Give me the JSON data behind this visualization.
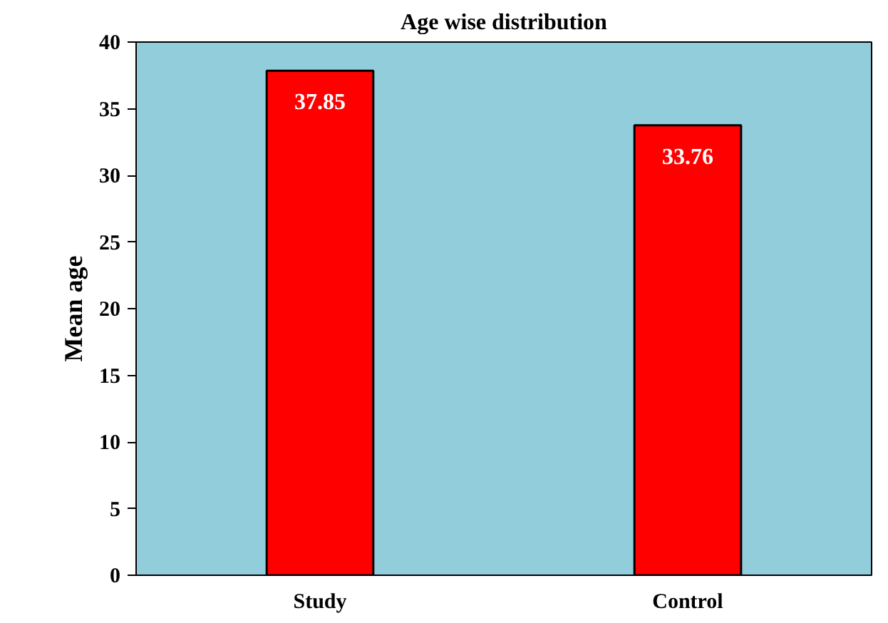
{
  "chart_data": {
    "type": "bar",
    "title": "Age wise distribution",
    "ylabel": "Mean age",
    "categories": [
      "Study",
      "Control"
    ],
    "values": [
      37.85,
      33.76
    ],
    "color": "#ff0000",
    "ylim": [
      0,
      40
    ],
    "yticks": [
      0,
      5,
      10,
      15,
      20,
      25,
      30,
      35,
      40
    ],
    "data_labels": true,
    "grid": false
  }
}
